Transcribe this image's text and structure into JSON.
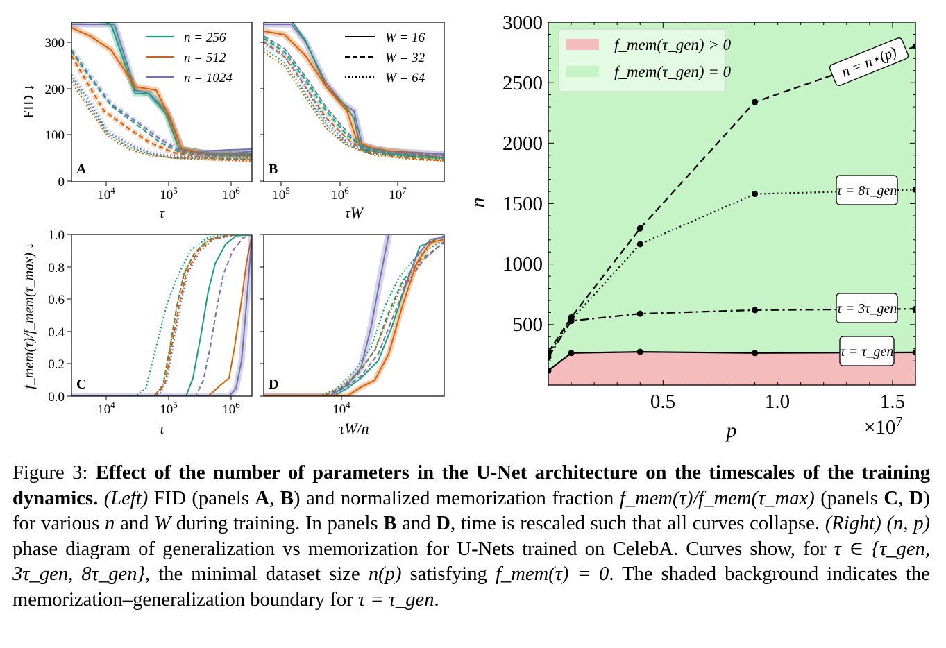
{
  "panels": {
    "A": {
      "letter": "A",
      "xlabel": "τ",
      "ylabel": "FID ↓",
      "xticks": [
        "10^4",
        "10^5",
        "10^6"
      ],
      "yticks": [
        "0",
        "100",
        "200",
        "300"
      ]
    },
    "B": {
      "letter": "B",
      "xlabel": "τW",
      "xticks": [
        "10^5",
        "10^6",
        "10^7"
      ]
    },
    "C": {
      "letter": "C",
      "xlabel": "τ",
      "ylabel": "f_mem(τ)/f_mem(τ_max) ↓",
      "xticks": [
        "10^4",
        "10^5",
        "10^6"
      ],
      "yticks": [
        "0.0",
        "0.2",
        "0.4",
        "0.6",
        "0.8",
        "1.0"
      ]
    },
    "D": {
      "letter": "D",
      "xlabel": "τW/n",
      "xticks": [
        "10^4"
      ]
    }
  },
  "legend_n": [
    {
      "label": "n = 256",
      "color": "#1b9e77"
    },
    {
      "label": "n = 512",
      "color": "#d95f02"
    },
    {
      "label": "n = 1024",
      "color": "#7570b3"
    }
  ],
  "legend_w": [
    {
      "label": "W = 16",
      "style": "solid"
    },
    {
      "label": "W = 32",
      "style": "dashed"
    },
    {
      "label": "W = 64",
      "style": "dotted"
    }
  ],
  "phase": {
    "xlabel": "p",
    "ylabel": "n",
    "xticks": [
      "0.5",
      "1.0",
      "1.5"
    ],
    "yticks": [
      "500",
      "1000",
      "1500",
      "2000",
      "2500",
      "3000"
    ],
    "offset": "×10^7",
    "legend": [
      {
        "label": "f_mem(τ_gen) > 0",
        "color": "#f4bcbc"
      },
      {
        "label": "f_mem(τ_gen) = 0",
        "color": "#c6f4c6"
      }
    ],
    "curve_labels": {
      "nstar": "n = n⋆(p)",
      "t8": "τ = 8τ_gen",
      "t3": "τ = 3τ_gen",
      "t1": "τ = τ_gen"
    }
  },
  "chart_data": {
    "type": "line",
    "title": "(n, p) phase diagram",
    "xlabel": "p (×10^7)",
    "ylabel": "n",
    "xlim": [
      0,
      1.6
    ],
    "ylim": [
      0,
      3000
    ],
    "series": [
      {
        "name": "n = n⋆(p)",
        "style": "dashed",
        "x": [
          0.0,
          0.1,
          0.4,
          0.9,
          1.6
        ],
        "y": [
          270,
          560,
          1295,
          2340,
          2800
        ]
      },
      {
        "name": "τ = 8τ_gen",
        "style": "dotted",
        "x": [
          0.0,
          0.1,
          0.4,
          0.9,
          1.6
        ],
        "y": [
          250,
          540,
          1165,
          1580,
          1615
        ]
      },
      {
        "name": "τ = 3τ_gen",
        "style": "dashdot",
        "x": [
          0.0,
          0.1,
          0.4,
          0.9,
          1.6
        ],
        "y": [
          230,
          530,
          590,
          620,
          630
        ]
      },
      {
        "name": "τ = τ_gen",
        "style": "solid",
        "x": [
          0.0,
          0.1,
          0.4,
          0.9,
          1.6
        ],
        "y": [
          120,
          265,
          275,
          265,
          270
        ]
      }
    ],
    "regions": [
      {
        "name": "f_mem(τ_gen) > 0",
        "color": "#f4bcbc",
        "boundary": "τ = τ_gen"
      },
      {
        "name": "f_mem(τ_gen) = 0",
        "color": "#c6f4c6"
      }
    ]
  },
  "caption": {
    "figure_label": "Figure 3:",
    "bold_title": "Effect of the number of parameters in the U-Net architecture on the timescales of the training dynamics.",
    "left_label": "(Left)",
    "t1": "FID (panels",
    "A": "A",
    "t2": ",",
    "B": "B",
    "t3": ") and normalized memorization fraction",
    "fmem_ratio": "f_mem(τ)/f_mem(τ_max)",
    "t4": "(panels",
    "C": "C",
    "t5": ",",
    "D": "D",
    "t6": ") for various",
    "n": "n",
    "t7": "and",
    "W": "W",
    "t8": "during training. In panels",
    "B2": "B",
    "t9": "and",
    "D2": "D",
    "t10": ", time is rescaled such that all curves collapse.",
    "right_label": "(Right)",
    "np": "(n, p)",
    "t11": "phase diagram of generalization vs memorization for U-Nets trained on CelebA. Curves show, for",
    "tauset": "τ ∈ {τ_gen, 3τ_gen, 8τ_gen}",
    "t12": ", the minimal dataset size",
    "np2": "n(p)",
    "t13": "satisfying",
    "cond": "f_mem(τ) = 0",
    "t14": ". The shaded background indicates the memorization–generalization boundary for",
    "taugen": "τ = τ_gen",
    "t15": "."
  },
  "colors": {
    "n256": "#1b9e77",
    "n512": "#d95f02",
    "n1024": "#7570b3",
    "red_region": "#f4bcbc",
    "green_region": "#c6f4c6"
  }
}
